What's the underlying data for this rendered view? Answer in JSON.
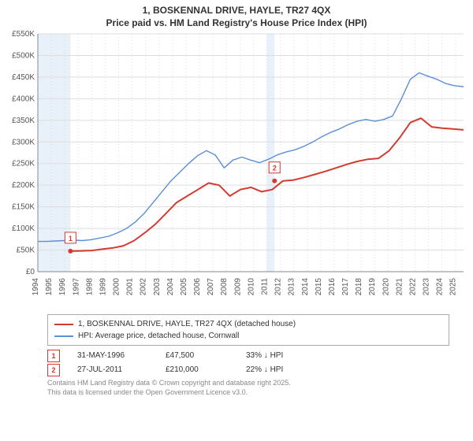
{
  "title_line1": "1, BOSKENNAL DRIVE, HAYLE, TR27 4QX",
  "title_line2": "Price paid vs. HM Land Registry's House Price Index (HPI)",
  "chart": {
    "type": "line",
    "background_color": "#ffffff",
    "plot_bg_color": "#ffffff",
    "shading_color": "#e8f0fa",
    "grid_color": "#dddddd",
    "axis_color": "#888888",
    "tick_fontsize": 10,
    "x_years": [
      1994,
      1995,
      1996,
      1997,
      1998,
      1999,
      2000,
      2001,
      2002,
      2003,
      2004,
      2005,
      2006,
      2007,
      2008,
      2009,
      2010,
      2011,
      2012,
      2013,
      2014,
      2015,
      2016,
      2017,
      2018,
      2019,
      2020,
      2021,
      2022,
      2023,
      2024,
      2025
    ],
    "xlim": [
      1994,
      2025.6
    ],
    "ylim": [
      0,
      550000
    ],
    "ytick_step": 50000,
    "ytick_labels": [
      "£0",
      "£50K",
      "£100K",
      "£150K",
      "£200K",
      "£250K",
      "£300K",
      "£350K",
      "£400K",
      "£450K",
      "£500K",
      "£550K"
    ],
    "series": [
      {
        "name": "1, BOSKENNAL DRIVE, HAYLE, TR27 4QX (detached house)",
        "color": "#d43a2f",
        "line_width": 2,
        "x_start": 1996.42,
        "values": [
          47500,
          48000,
          49000,
          52000,
          55000,
          60000,
          72000,
          90000,
          110000,
          135000,
          160000,
          175000,
          190000,
          205000,
          200000,
          175000,
          190000,
          195000,
          185000,
          190000,
          210000,
          212000,
          218000,
          225000,
          232000,
          240000,
          248000,
          255000,
          260000,
          262000,
          280000,
          310000,
          345000,
          355000,
          335000,
          332000,
          330000,
          328000
        ]
      },
      {
        "name": "HPI: Average price, detached house, Cornwall",
        "color": "#5b8fd6",
        "line_width": 1.4,
        "x_start": 1994,
        "values": [
          70000,
          70000,
          71000,
          72000,
          73000,
          72000,
          74000,
          78000,
          82000,
          90000,
          100000,
          115000,
          135000,
          160000,
          185000,
          210000,
          230000,
          250000,
          268000,
          280000,
          270000,
          240000,
          258000,
          265000,
          258000,
          252000,
          260000,
          270000,
          277000,
          282000,
          290000,
          300000,
          312000,
          322000,
          330000,
          340000,
          348000,
          352000,
          348000,
          352000,
          360000,
          400000,
          445000,
          460000,
          452000,
          445000,
          435000,
          430000,
          428000
        ]
      }
    ],
    "shaded_ranges": [
      {
        "from": 1994,
        "to": 1996.42
      },
      {
        "from": 2011,
        "to": 2011.57
      }
    ],
    "markers": [
      {
        "label": "1",
        "x": 1996.42,
        "y": 47500,
        "color": "#d43a2f"
      },
      {
        "label": "2",
        "x": 2011.57,
        "y": 210000,
        "color": "#d43a2f"
      }
    ]
  },
  "legend": {
    "items": [
      {
        "color": "#d43a2f",
        "label": "1, BOSKENNAL DRIVE, HAYLE, TR27 4QX (detached house)"
      },
      {
        "color": "#5b8fd6",
        "label": "HPI: Average price, detached house, Cornwall"
      }
    ]
  },
  "sales": [
    {
      "marker": "1",
      "date": "31-MAY-1996",
      "price": "£47,500",
      "delta": "33% ↓ HPI"
    },
    {
      "marker": "2",
      "date": "27-JUL-2011",
      "price": "£210,000",
      "delta": "22% ↓ HPI"
    }
  ],
  "disclaimer_line1": "Contains HM Land Registry data © Crown copyright and database right 2025.",
  "disclaimer_line2": "This data is licensed under the Open Government Licence v3.0."
}
